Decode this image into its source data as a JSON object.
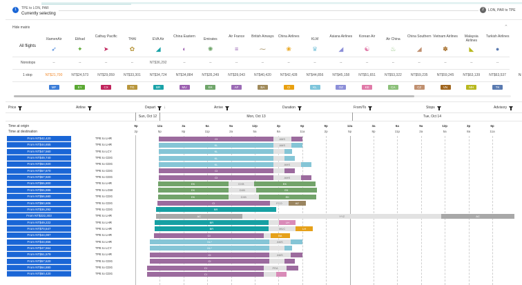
{
  "steps": [
    {
      "number": "1",
      "route": "TPE to LON, PAR",
      "status": "Currently selecting"
    },
    {
      "number": "2",
      "route": "LON, PAR to TPE"
    }
  ],
  "matrix": {
    "toggle_label": "Hide matrix",
    "row_labels": {
      "all": "All flights",
      "nonstop": "Nonstops",
      "one_stop": "1 stop"
    },
    "airlines": [
      {
        "name": "XiamenAir",
        "code": "MF",
        "color": "#3b7dd8",
        "logo": "xiamenair-logo",
        "glyph": "➶",
        "nonstop": "--",
        "one_stop": "NT$21,700",
        "cheapest": true
      },
      {
        "name": "Etihad",
        "code": "EY",
        "color": "#5aa832",
        "logo": "etihad-logo",
        "glyph": "✦",
        "nonstop": "--",
        "one_stop": "NT$24,573"
      },
      {
        "name": "Cathay Pacific",
        "code": "CX",
        "color": "#c0245c",
        "logo": "cathay-logo",
        "glyph": "➤",
        "nonstop": "--",
        "one_stop": "NT$29,059"
      },
      {
        "name": "THAI",
        "code": "TG",
        "color": "#b8963c",
        "logo": "thai-logo",
        "glyph": "✿",
        "nonstop": "--",
        "one_stop": "NT$33,301"
      },
      {
        "name": "EVA Air",
        "code": "BR",
        "color": "#1aa3a8",
        "logo": "eva-logo",
        "glyph": "◢",
        "nonstop": "NT$36,292",
        "one_stop": "NT$34,724"
      },
      {
        "name": "China Eastern",
        "code": "MU",
        "color": "#9b5fb0",
        "logo": "china-eastern-logo",
        "glyph": "◐",
        "nonstop": "--",
        "one_stop": "NT$34,884"
      },
      {
        "name": "Emirates",
        "code": "EK",
        "color": "#6fa56a",
        "logo": "emirates-logo",
        "glyph": "✺",
        "nonstop": "--",
        "one_stop": "NT$35,249"
      },
      {
        "name": "Air France",
        "code": "AF",
        "color": "#9b6bb5",
        "logo": "air-france-logo",
        "glyph": "≡",
        "nonstop": "--",
        "one_stop": "NT$39,043"
      },
      {
        "name": "British Airways",
        "code": "BA",
        "color": "#a08a5a",
        "logo": "british-airways-logo",
        "glyph": "⁓",
        "nonstop": "--",
        "one_stop": "NT$40,420"
      },
      {
        "name": "China Airlines",
        "code": "CI",
        "color": "#e8a010",
        "logo": "china-airlines-logo",
        "glyph": "❀",
        "nonstop": "--",
        "one_stop": "NT$42,428"
      },
      {
        "name": "KLM",
        "code": "KL",
        "color": "#7ec5db",
        "logo": "klm-logo",
        "glyph": "♛",
        "nonstop": "--",
        "one_stop": "NT$44,856"
      },
      {
        "name": "Asiana Airlines",
        "code": "OZ",
        "color": "#8c8fd8",
        "logo": "asiana-logo",
        "glyph": "◢",
        "nonstop": "--",
        "one_stop": "NT$45,158"
      },
      {
        "name": "Korean Air",
        "code": "KE",
        "color": "#e07aa8",
        "logo": "korean-air-logo",
        "glyph": "☯",
        "nonstop": "--",
        "one_stop": "NT$51,651"
      },
      {
        "name": "Air China",
        "code": "CA",
        "color": "#8cc07a",
        "logo": "air-china-logo",
        "glyph": "♨",
        "nonstop": "--",
        "one_stop": "NT$53,322"
      },
      {
        "name": "China Southern",
        "code": "CZ",
        "color": "#c09070",
        "logo": "china-southern-logo",
        "glyph": "◢",
        "nonstop": "--",
        "one_stop": "NT$59,235"
      },
      {
        "name": "Vietnam Airlines",
        "code": "VN",
        "color": "#a0661e",
        "logo": "vietnam-airlines-logo",
        "glyph": "✽",
        "nonstop": "--",
        "one_stop": "NT$59,245"
      },
      {
        "name": "Malaysia Airlines",
        "code": "MH",
        "color": "#b8b81e",
        "logo": "malaysia-airlines-logo",
        "glyph": "◣",
        "nonstop": "--",
        "one_stop": "NT$63,139"
      },
      {
        "name": "Turkish Airlines",
        "code": "TK",
        "color": "#5a7ab0",
        "logo": "turkish-airlines-logo",
        "glyph": "●",
        "nonstop": "--",
        "one_stop": "NT$63,537"
      }
    ]
  },
  "columns": [
    "Price",
    "Airline",
    "Depart",
    "Arrive",
    "Duration",
    "From/To",
    "Stops",
    "Advisory"
  ],
  "dates": [
    "Sun, Oct 12",
    "Mon, Oct 13",
    "Tue, Oct 14"
  ],
  "axis": {
    "origin_label": "Time at origin",
    "dest_label": "Time at destination",
    "origin_ticks": [
      "9p",
      "12a",
      "3a",
      "6a",
      "9a",
      "12p",
      "3p",
      "6p",
      "9p",
      "12a",
      "3a",
      "6a",
      "9a",
      "12p",
      "3p",
      "6p"
    ],
    "dest_ticks": [
      "2p",
      "5p",
      "8p",
      "11p",
      "2a",
      "5a",
      "8a",
      "11a",
      "2p",
      "5p",
      "8p",
      "11p",
      "2a",
      "5a",
      "8a",
      "11a"
    ]
  },
  "colors": {
    "p": "#9c6b9e",
    "b": "#85c5d6",
    "g": "#72a36a",
    "t": "#16a0a3",
    "gr": "#a8a8a8",
    "lay": "#e2e2e2",
    "o": "#e6a11a",
    "pk": "#d98bb8",
    "br": "#9a8560",
    "button": "#1a66d6"
  },
  "flights": [
    {
      "price": "From NT$42,420",
      "route": "TPE to LHR",
      "segments": [
        [
          "Sun 23:55",
          "Mon 14:20",
          "CI",
          "p"
        ],
        [
          "Mon 14:20",
          "Mon 16:35",
          "AMS",
          "lay"
        ],
        [
          "Mon 16:35",
          "Mon 18:00",
          "",
          "p"
        ]
      ]
    },
    {
      "price": "From NT$44,655",
      "route": "TPE to LHR",
      "segments": [
        [
          "Sun 23:55",
          "Mon 14:20",
          "KL",
          "b"
        ],
        [
          "Mon 14:20",
          "Mon 16:35",
          "AMS",
          "lay"
        ],
        [
          "Mon 16:35",
          "Mon 18:00",
          "",
          "b"
        ]
      ]
    },
    {
      "price": "From NT$47,560",
      "route": "TPE to LCY",
      "segments": [
        [
          "Sun 23:55",
          "Mon 14:20",
          "KL",
          "b"
        ],
        [
          "Mon 14:20",
          "Mon 15:45",
          "",
          "lay"
        ],
        [
          "Mon 15:45",
          "Mon 16:40",
          "",
          "b"
        ]
      ]
    },
    {
      "price": "From NT$49,740",
      "route": "TPE to CDG",
      "segments": [
        [
          "Sun 23:55",
          "Mon 14:20",
          "KL",
          "b"
        ],
        [
          "Mon 14:20",
          "Mon 15:45",
          "",
          "lay"
        ],
        [
          "Mon 15:45",
          "Mon 17:05",
          "",
          "b"
        ]
      ]
    },
    {
      "price": "From NT$54,920",
      "route": "TPE to CDG",
      "segments": [
        [
          "Sun 23:55",
          "Mon 14:20",
          "KL",
          "b"
        ],
        [
          "Mon 14:20",
          "Mon 17:50",
          "AMS",
          "lay"
        ],
        [
          "Mon 17:50",
          "Mon 19:10",
          "",
          "b"
        ]
      ]
    },
    {
      "price": "From NT$57,870",
      "route": "TPE to CDG",
      "segments": [
        [
          "Sun 23:55",
          "Mon 14:20",
          "CI",
          "p"
        ],
        [
          "Mon 14:20",
          "Mon 15:45",
          "",
          "lay"
        ],
        [
          "Mon 15:45",
          "Mon 17:05",
          "",
          "p"
        ]
      ]
    },
    {
      "price": "From NT$57,920",
      "route": "TPE to CDG",
      "segments": [
        [
          "Sun 23:55",
          "Mon 14:20",
          "CI",
          "p"
        ],
        [
          "Mon 14:20",
          "Mon 17:50",
          "AMS",
          "lay"
        ],
        [
          "Mon 17:50",
          "Mon 19:10",
          "",
          "p"
        ]
      ]
    },
    {
      "price": "From NT$55,800",
      "route": "TPE to LHR",
      "segments": [
        [
          "Sun 23:45",
          "Mon 08:40",
          "EK",
          "g"
        ],
        [
          "Mon 08:40",
          "Mon 11:55",
          "DXB",
          "lay"
        ],
        [
          "Mon 11:55",
          "Mon 19:40",
          "EK",
          "g"
        ]
      ]
    },
    {
      "price": "From NT$55,886",
      "route": "TPE to LGW",
      "segments": [
        [
          "Sun 23:45",
          "Mon 08:40",
          "EK",
          "g"
        ],
        [
          "Mon 08:40",
          "Mon 12:10",
          "DXB",
          "lay"
        ],
        [
          "Mon 12:10",
          "Mon 19:50",
          "EK",
          "g"
        ]
      ]
    },
    {
      "price": "From NT$56,680",
      "route": "TPE to CDG",
      "segments": [
        [
          "Sun 23:45",
          "Mon 08:40",
          "EK",
          "g"
        ],
        [
          "Mon 08:40",
          "Mon 12:30",
          "DXB",
          "lay"
        ],
        [
          "Mon 12:30",
          "Mon 19:45",
          "EK",
          "g"
        ]
      ]
    },
    {
      "price": "From NT$50,606",
      "route": "TPE to CDG",
      "segments": [
        [
          "Sun 23:40",
          "Mon 13:55",
          "CI",
          "p"
        ],
        [
          "Mon 13:55",
          "Mon 16:15",
          "FCO",
          "lay"
        ],
        [
          "Mon 16:15",
          "Mon 18:25",
          "AZ",
          "br"
        ]
      ]
    },
    {
      "price": "From NT$36,292",
      "route": "TPE to CDG",
      "segments": [
        [
          "Sun 23:30",
          "Mon 14:40",
          "BR",
          "t"
        ]
      ]
    },
    {
      "price": "From NT$222,303",
      "route": "TPE to LHR",
      "segments": [
        [
          "Sun 23:30",
          "Mon 10:25",
          "AC",
          "gr"
        ],
        [
          "Mon 10:25",
          "Tue 11:35",
          "YYZ",
          "lay"
        ],
        [
          "Tue 11:35",
          "Tue 20:45",
          "AC",
          "gr"
        ]
      ]
    },
    {
      "price": "From NT$49,222",
      "route": "TPE to LHR",
      "segments": [
        [
          "Sun 23:20",
          "Mon 13:45",
          "BR",
          "t"
        ],
        [
          "Mon 13:45",
          "Mon 15:05",
          "",
          "lay"
        ],
        [
          "Mon 15:05",
          "Mon 17:10",
          "LH",
          "pk"
        ]
      ]
    },
    {
      "price": "From NT$70,547",
      "route": "TPE to LHR",
      "segments": [
        [
          "Sun 23:20",
          "Mon 13:45",
          "BR",
          "t"
        ],
        [
          "Mon 13:45",
          "Mon 17:10",
          "MUC",
          "lay"
        ],
        [
          "Mon 17:10",
          "Mon 19:20",
          "LH",
          "o"
        ]
      ]
    },
    {
      "price": "From NT$44,087",
      "route": "TPE to LHR",
      "segments": [
        [
          "Sun 23:15",
          "Mon 13:10",
          "CI",
          "p"
        ],
        [
          "Mon 13:10",
          "Mon 14:00",
          "",
          "lay"
        ],
        [
          "Mon 14:00",
          "Mon 16:25",
          "BA",
          "o"
        ]
      ]
    },
    {
      "price": "From NT$44,656",
      "route": "TPE to LHR",
      "segments": [
        [
          "Sun 22:45",
          "Mon 13:50",
          "KL*",
          "b"
        ],
        [
          "Mon 13:50",
          "Mon 16:30",
          "AMS",
          "lay"
        ],
        [
          "Mon 16:30",
          "Mon 18:00",
          "",
          "b"
        ]
      ]
    },
    {
      "price": "From NT$47,564",
      "route": "TPE to LCY",
      "segments": [
        [
          "Sun 22:45",
          "Mon 13:50",
          "KL*",
          "b"
        ],
        [
          "Mon 13:50",
          "Mon 15:45",
          "",
          "lay"
        ],
        [
          "Mon 15:45",
          "Mon 16:40",
          "",
          "b"
        ]
      ]
    },
    {
      "price": "From NT$51,579",
      "route": "TPE to LHR",
      "segments": [
        [
          "Sun 22:45",
          "Mon 13:50",
          "CI",
          "p"
        ],
        [
          "Mon 13:50",
          "Mon 16:30",
          "AMS",
          "lay"
        ],
        [
          "Mon 16:30",
          "Mon 18:00",
          "",
          "p"
        ]
      ]
    },
    {
      "price": "From NT$57,620",
      "route": "TPE to CDG",
      "segments": [
        [
          "Sun 22:45",
          "Mon 13:50",
          "CI",
          "p"
        ],
        [
          "Mon 13:50",
          "Mon 15:45",
          "",
          "lay"
        ],
        [
          "Mon 15:45",
          "Mon 17:05",
          "",
          "p"
        ]
      ]
    },
    {
      "price": "From NT$64,880",
      "route": "TPE to CDG",
      "segments": [
        [
          "Sun 22:25",
          "Mon 13:10",
          "CI",
          "p"
        ],
        [
          "Mon 13:10",
          "Mon 16:00",
          "PRA",
          "lay"
        ],
        [
          "Mon 16:00",
          "Mon 17:30",
          "",
          "p"
        ]
      ]
    },
    {
      "price": "From NT$50,420",
      "route": "TPE to CDG",
      "segments": [
        [
          "Sun 22:25",
          "Mon 13:10",
          "CI",
          "p"
        ],
        [
          "Mon 13:10",
          "Mon 14:40",
          "",
          "lay"
        ],
        [
          "Mon 14:40",
          "Mon 16:00",
          "",
          "pk"
        ]
      ]
    }
  ]
}
